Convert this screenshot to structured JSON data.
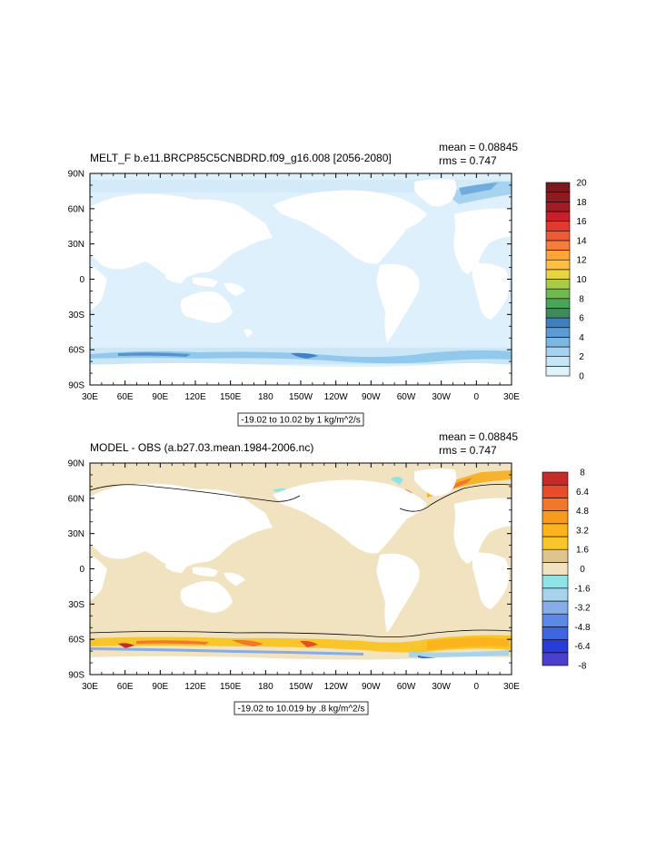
{
  "chart_data": [
    {
      "type": "heatmap",
      "projection": "cylindrical-equidistant global map",
      "title": "MELT_F b.e11.BRCP85C5CNBDRD.f09_g16.008 [2056-2080]",
      "stats": [
        "mean = 0.08845",
        "rms = 0.747"
      ],
      "subtitle_box": "-19.02 to 10.02 by 1 kg/m^2/s",
      "x_ticks": [
        "30E",
        "60E",
        "90E",
        "120E",
        "150E",
        "180",
        "150W",
        "120W",
        "90W",
        "60W",
        "30W",
        "0",
        "30E"
      ],
      "y_ticks": [
        "90N",
        "60N",
        "30N",
        "0",
        "30S",
        "60S",
        "90S"
      ],
      "xlim": [
        30,
        390
      ],
      "ylim": [
        -90,
        90
      ],
      "colorbar": {
        "labels": [
          "20",
          "18",
          "16",
          "14",
          "12",
          "10",
          "8",
          "6",
          "4",
          "2",
          "0"
        ],
        "colors_bottom_to_top": [
          "#e0f3fb",
          "#c4e6f7",
          "#a3d3f2",
          "#7ab7e4",
          "#5c9bd4",
          "#3e7fbf",
          "#3d8b5d",
          "#4aa55a",
          "#6dbb4a",
          "#a9cb45",
          "#e8d440",
          "#ffc040",
          "#ffa538",
          "#f47f3a",
          "#ef5a35",
          "#e03a30",
          "#c7202a",
          "#a51b25",
          "#8f1b22",
          "#7a1a1f"
        ],
        "levels": [
          0,
          20
        ]
      },
      "features": [
        "Arctic meltwater band (light blue, ~75N–85N)",
        "Southern Ocean band (blue, ~60S–68S)",
        "Melt maxima near southern Greenland and Labrador Sea"
      ]
    },
    {
      "type": "heatmap",
      "projection": "cylindrical-equidistant global map",
      "title": "MODEL - OBS (a.b27.03.mean.1984-2006.nc)",
      "stats": [
        "mean = 0.08845",
        "rms = 0.747"
      ],
      "subtitle_box": "-19.02 to 10.019 by .8 kg/m^2/s",
      "x_ticks": [
        "30E",
        "60E",
        "90E",
        "120E",
        "150E",
        "180",
        "150W",
        "120W",
        "90W",
        "60W",
        "30W",
        "0",
        "30E"
      ],
      "y_ticks": [
        "90N",
        "60N",
        "30N",
        "0",
        "30S",
        "60S",
        "90S"
      ],
      "xlim": [
        30,
        390
      ],
      "ylim": [
        -90,
        90
      ],
      "colorbar": {
        "labels": [
          "8",
          "6.4",
          "4.8",
          "3.2",
          "1.6",
          "0",
          "-1.6",
          "-3.2",
          "-4.8",
          "-6.4",
          "-8"
        ],
        "colors_bottom_to_top": [
          "#4b3fd0",
          "#2a3cd8",
          "#3f66e0",
          "#5a8ae6",
          "#86ade8",
          "#a8d3ec",
          "#8fe3e6",
          "#f2e3c0",
          "#e0c48f",
          "#f8c62a",
          "#fcb31c",
          "#f89a1e",
          "#f2772a",
          "#e84a2a",
          "#c42c2a"
        ],
        "levels": [
          -8,
          8
        ]
      },
      "features": [
        "Ocean mostly near zero (tan)",
        "Positive differences along Southern Ocean band ~60S–68S",
        "Positive differences near Greenland/Labrador Sea and Arctic margins",
        "Land masked (white)"
      ]
    }
  ]
}
